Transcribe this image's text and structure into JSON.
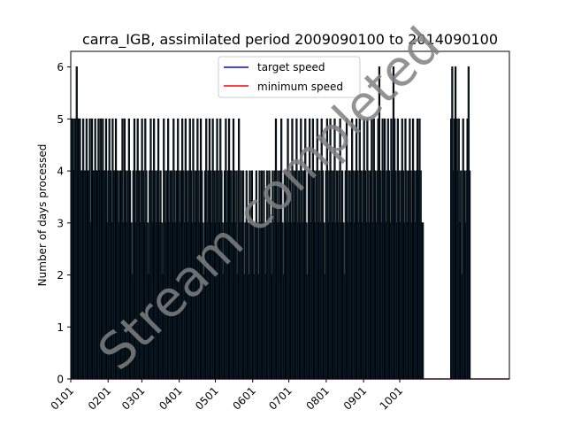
{
  "chart_data": {
    "type": "bar",
    "title": "carra_IGB, assimilated period 2009090100 to 2014090100",
    "xlabel": "",
    "ylabel": "Number of days processed",
    "ylim": [
      0,
      6.3
    ],
    "yticks": [
      "0",
      "1",
      "2",
      "3",
      "4",
      "5",
      "6"
    ],
    "xtick_labels": [
      "0101",
      "0201",
      "0301",
      "0401",
      "0501",
      "0601",
      "0701",
      "0801",
      "0901",
      "1001"
    ],
    "x_range_days": [
      1,
      365
    ],
    "grid": false,
    "legend_position": "upper center",
    "series": [
      {
        "name": "days processed",
        "style": "bars",
        "color": "#1f77b4",
        "edge_color": "#000000",
        "values": [
          5,
          5,
          4,
          5,
          5,
          6,
          5,
          5,
          5,
          4,
          4,
          5,
          4,
          4,
          5,
          4,
          4,
          5,
          3,
          5,
          4,
          4,
          5,
          4,
          4,
          5,
          4,
          5,
          4,
          5,
          4,
          4,
          5,
          3,
          4,
          5,
          4,
          3,
          5,
          4,
          4,
          5,
          4,
          4,
          3,
          4,
          4,
          5,
          3,
          5,
          4,
          3,
          4,
          5,
          4,
          3,
          2,
          4,
          5,
          3,
          4,
          5,
          4,
          3,
          4,
          5,
          4,
          3,
          5,
          4,
          3,
          2,
          4,
          5,
          4,
          3,
          5,
          4,
          3,
          4,
          5,
          3,
          4,
          3,
          2,
          5,
          4,
          3,
          4,
          5,
          3,
          4,
          4,
          3,
          5,
          4,
          3,
          4,
          5,
          4,
          3,
          4,
          5,
          4,
          3,
          5,
          4,
          3,
          4,
          5,
          4,
          3,
          5,
          4,
          3,
          4,
          5,
          4,
          3,
          5,
          4,
          3,
          2,
          4,
          5,
          3,
          4,
          5,
          4,
          3,
          5,
          4,
          3,
          4,
          5,
          4,
          3,
          5,
          4,
          3,
          2,
          4,
          5,
          3,
          4,
          5,
          4,
          4,
          3,
          5,
          4,
          3,
          4,
          2,
          5,
          3,
          4,
          3,
          4,
          2,
          3,
          4,
          3,
          2,
          4,
          3,
          4,
          3,
          2,
          3,
          4,
          3,
          2,
          4,
          3,
          4,
          3,
          4,
          3,
          2,
          4,
          3,
          4,
          3,
          2,
          4,
          3,
          4,
          5,
          3,
          4,
          3,
          4,
          5,
          3,
          2,
          4,
          3,
          4,
          5,
          3,
          4,
          3,
          5,
          4,
          3,
          4,
          5,
          3,
          4,
          3,
          5,
          4,
          3,
          4,
          5,
          3,
          2,
          4,
          5,
          3,
          4,
          5,
          4,
          3,
          4,
          5,
          3,
          4,
          3,
          5,
          4,
          3,
          2,
          4,
          5,
          3,
          4,
          5,
          4,
          3,
          4,
          5,
          3,
          4,
          3,
          4,
          5,
          3,
          4,
          3,
          2,
          4,
          5,
          3,
          4,
          4,
          3,
          5,
          4,
          3,
          4,
          5,
          4,
          3,
          5,
          4,
          3,
          4,
          5,
          4,
          3,
          5,
          4,
          3,
          4,
          5,
          3,
          5,
          4,
          3,
          4,
          5,
          6,
          4,
          3,
          5,
          4,
          5,
          3,
          4,
          5,
          4,
          3,
          5,
          4,
          6,
          5,
          4,
          3,
          5,
          4,
          3,
          4,
          5,
          4,
          3,
          5,
          4,
          3,
          4,
          5,
          4,
          3,
          5,
          4,
          3,
          4,
          5,
          4,
          5,
          4,
          3,
          3,
          0,
          0,
          0,
          0,
          0,
          0,
          0,
          0,
          0,
          0,
          0,
          0,
          0,
          0,
          0,
          0,
          0,
          0,
          0,
          0,
          0,
          0,
          0,
          0,
          0,
          5,
          6,
          4,
          5,
          6,
          5,
          4,
          5,
          3,
          4,
          2,
          5,
          4,
          3,
          4,
          5,
          6,
          4,
          0,
          0,
          0,
          0,
          0,
          0,
          0,
          0,
          0,
          0,
          0,
          0,
          0,
          0,
          0,
          0,
          0,
          0,
          0,
          0,
          0,
          0,
          0,
          0,
          0,
          0,
          0,
          0,
          0,
          0,
          0,
          0,
          0,
          0,
          0,
          0
        ]
      },
      {
        "name": "target speed",
        "style": "line",
        "color": "#0000ff",
        "value": 0
      },
      {
        "name": "minimum speed",
        "style": "line",
        "color": "#ff0000",
        "value": 0
      }
    ]
  },
  "watermark": {
    "text": "Stream completed",
    "color": "#808080"
  }
}
